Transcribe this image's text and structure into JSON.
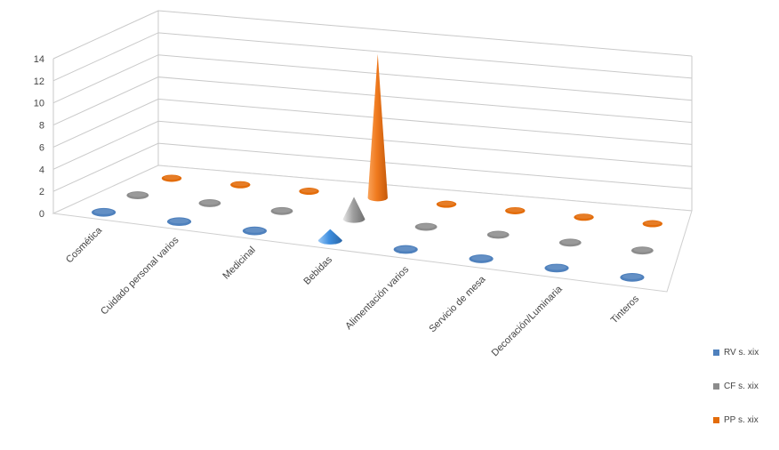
{
  "chart_data": {
    "type": "bar",
    "title": "",
    "xlabel": "",
    "ylabel": "",
    "ylim": [
      0,
      14
    ],
    "yticks": [
      0,
      2,
      4,
      6,
      8,
      10,
      12,
      14
    ],
    "categories": [
      "Cosmética",
      "Cuidado personal varios",
      "Medicinal",
      "Bebidas",
      "Alimentación varios",
      "Servicio de mesa",
      "Decoración/Luminaria",
      "Tinteros"
    ],
    "series": [
      {
        "name": "RV s. xix",
        "color": "#4f81bd",
        "values": [
          0,
          0,
          0,
          1,
          0,
          0,
          0,
          0
        ]
      },
      {
        "name": "CF s. xix",
        "color": "#8c8c8c",
        "values": [
          0,
          0,
          0,
          2,
          0,
          0,
          0,
          0
        ]
      },
      {
        "name": "PP s. xix",
        "color": "#e36c0a",
        "values": [
          0,
          0,
          0,
          13,
          0,
          0,
          0,
          0
        ]
      }
    ],
    "grid": true,
    "legend": "right"
  }
}
